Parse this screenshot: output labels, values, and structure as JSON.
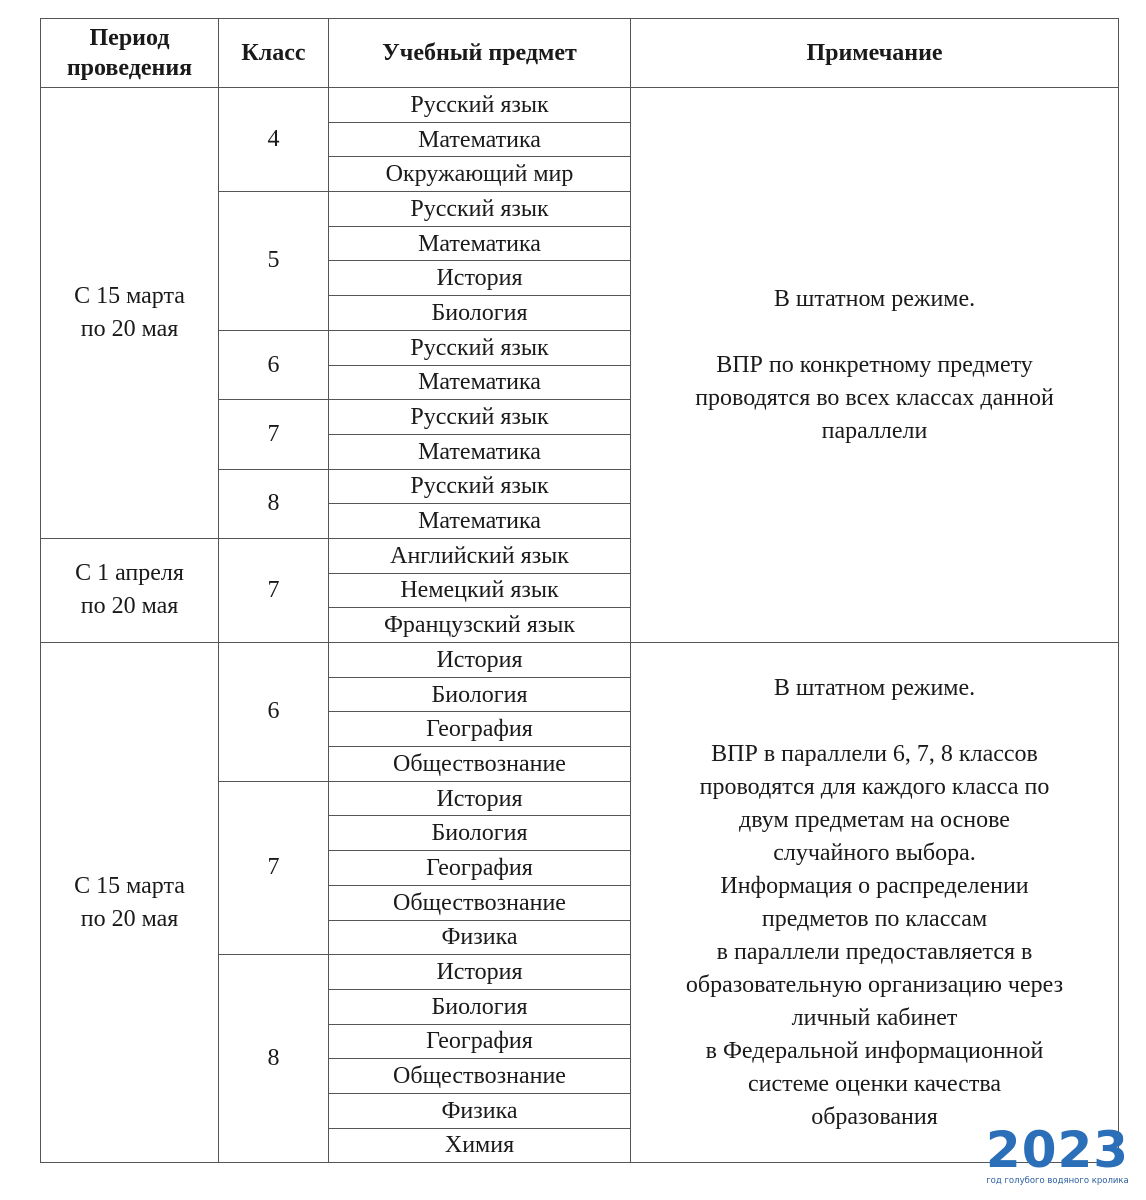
{
  "header": [
    "Период проведения",
    "Класс",
    "Учебный предмет",
    "Примечание"
  ],
  "sections": [
    {
      "note": [
        [
          "В штатном режиме."
        ],
        [
          "ВПР по конкретному предмету",
          "проводятся во всех классах данной",
          "параллели"
        ]
      ],
      "periods": [
        {
          "period": [
            "С 15 марта",
            "по 20 мая"
          ],
          "classes": [
            {
              "class": "4",
              "subjects": [
                "Русский язык",
                "Математика",
                "Окружающий мир"
              ]
            },
            {
              "class": "5",
              "subjects": [
                "Русский язык",
                "Математика",
                "История",
                "Биология"
              ]
            },
            {
              "class": "6",
              "subjects": [
                "Русский язык",
                "Математика"
              ]
            },
            {
              "class": "7",
              "subjects": [
                "Русский язык",
                "Математика"
              ]
            },
            {
              "class": "8",
              "subjects": [
                "Русский язык",
                "Математика"
              ]
            }
          ]
        },
        {
          "period": [
            "С 1 апреля",
            "по 20 мая"
          ],
          "classes": [
            {
              "class": "7",
              "subjects": [
                "Английский язык",
                "Немецкий язык",
                "Французский язык"
              ]
            }
          ]
        }
      ]
    },
    {
      "note": [
        [
          "В штатном режиме."
        ],
        [
          "ВПР в параллели 6, 7, 8 классов",
          "проводятся для каждого класса по",
          "двум предметам на основе",
          "случайного выбора.",
          "Информация о распределении",
          "предметов по классам",
          "в параллели предоставляется в",
          "образовательную организацию через",
          "личный кабинет",
          "в Федеральной информационной",
          "системе оценки качества",
          "образования"
        ]
      ],
      "periods": [
        {
          "period": [
            "С 15 марта",
            "по 20 мая"
          ],
          "classes": [
            {
              "class": "6",
              "subjects": [
                "История",
                "Биология",
                "География",
                "Обществознание"
              ]
            },
            {
              "class": "7",
              "subjects": [
                "История",
                "Биология",
                "География",
                "Обществознание",
                "Физика"
              ]
            },
            {
              "class": "8",
              "subjects": [
                "История",
                "Биология",
                "География",
                "Обществознание",
                "Физика",
                "Химия"
              ]
            }
          ]
        }
      ]
    }
  ],
  "watermark": {
    "year": "2023",
    "caption": "год голубого водяного кролика"
  }
}
